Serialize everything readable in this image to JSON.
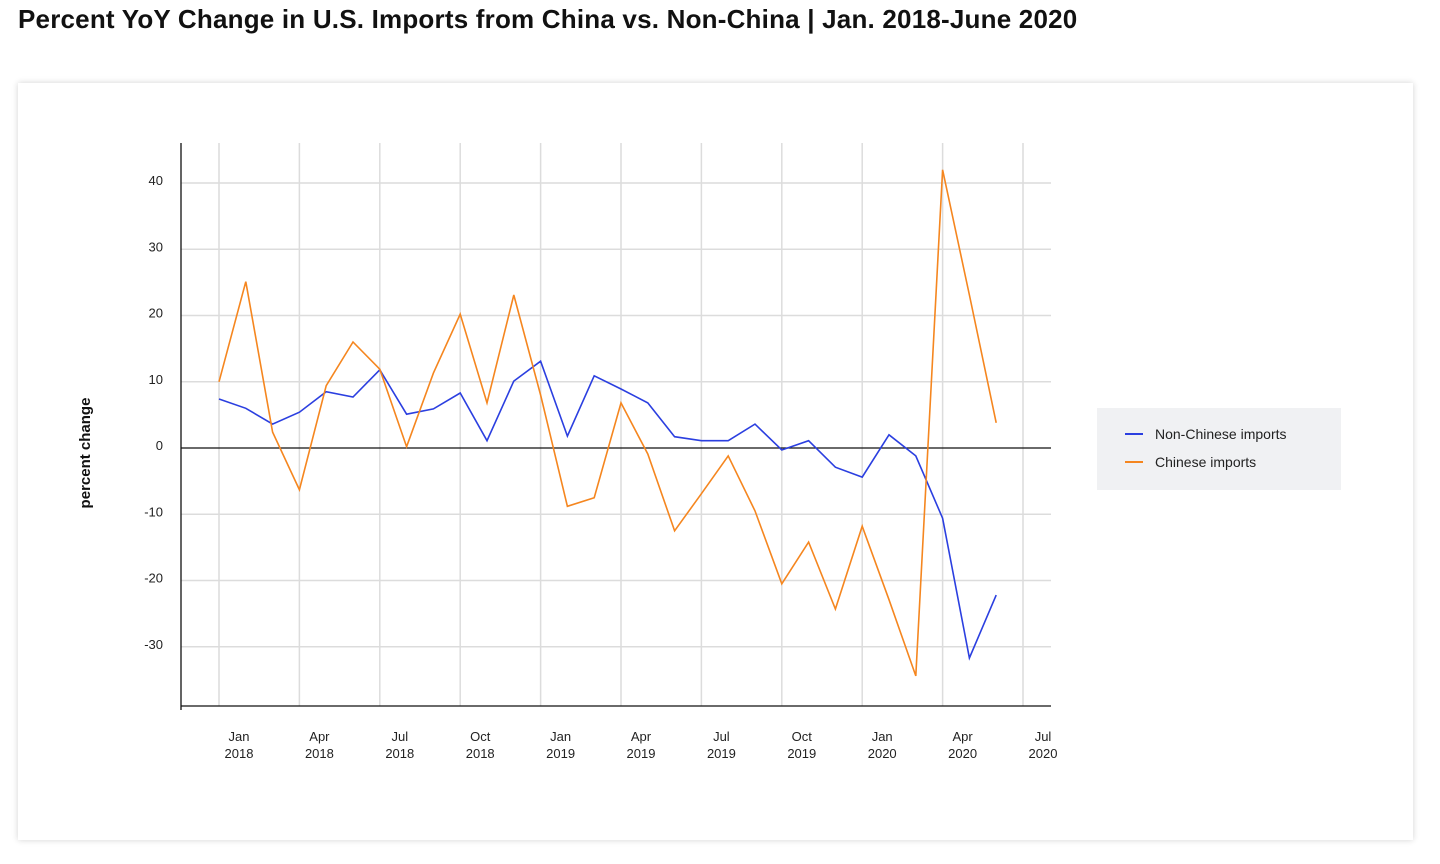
{
  "chart_data": {
    "type": "line",
    "title": "Percent YoY Change in U.S. Imports from China vs. Non-China | Jan. 2018-June 2020",
    "xlabel": "",
    "ylabel": "percent change",
    "ylim": [
      -39,
      46
    ],
    "yticks": [
      40,
      30,
      20,
      10,
      0,
      -10,
      -20,
      -30
    ],
    "xticks": [
      {
        "month": 0,
        "line1": "Jan",
        "line2": "2018"
      },
      {
        "month": 3,
        "line1": "Apr",
        "line2": "2018"
      },
      {
        "month": 6,
        "line1": "Jul",
        "line2": "2018"
      },
      {
        "month": 9,
        "line1": "Oct",
        "line2": "2018"
      },
      {
        "month": 12,
        "line1": "Jan",
        "line2": "2019"
      },
      {
        "month": 15,
        "line1": "Apr",
        "line2": "2019"
      },
      {
        "month": 18,
        "line1": "Jul",
        "line2": "2019"
      },
      {
        "month": 21,
        "line1": "Oct",
        "line2": "2019"
      },
      {
        "month": 24,
        "line1": "Jan",
        "line2": "2020"
      },
      {
        "month": 27,
        "line1": "Apr",
        "line2": "2020"
      },
      {
        "month": 30,
        "line1": "Jul",
        "line2": "2020"
      }
    ],
    "x": [
      "2018-01",
      "2018-02",
      "2018-03",
      "2018-04",
      "2018-05",
      "2018-06",
      "2018-07",
      "2018-08",
      "2018-09",
      "2018-10",
      "2018-11",
      "2018-12",
      "2019-01",
      "2019-02",
      "2019-03",
      "2019-04",
      "2019-05",
      "2019-06",
      "2019-07",
      "2019-08",
      "2019-09",
      "2019-10",
      "2019-11",
      "2019-12",
      "2020-01",
      "2020-02",
      "2020-03",
      "2020-04",
      "2020-05",
      "2020-06"
    ],
    "grid": true,
    "legend_position": "right",
    "series": [
      {
        "name": "Non-Chinese imports",
        "color": "#2b3fe0",
        "values": [
          7.4,
          6.0,
          3.6,
          5.4,
          8.5,
          7.7,
          11.8,
          5.1,
          5.9,
          8.3,
          1.1,
          10.1,
          13.1,
          1.8,
          10.9,
          8.9,
          6.8,
          1.7,
          1.1,
          1.1,
          3.6,
          -0.3,
          1.1,
          -2.9,
          -4.4,
          2.0,
          -1.2,
          -10.6,
          -31.7,
          -22.2
        ]
      },
      {
        "name": "Chinese imports",
        "color": "#f5861f",
        "values": [
          10.0,
          25.1,
          2.4,
          -6.3,
          9.4,
          16.0,
          11.9,
          0.2,
          11.3,
          20.2,
          6.8,
          23.1,
          8.0,
          -8.8,
          -7.5,
          6.8,
          -0.9,
          -12.5,
          -6.9,
          -1.2,
          -9.5,
          -20.5,
          -14.2,
          -24.3,
          -11.8,
          -22.9,
          -34.4,
          42.0,
          23.1,
          3.8
        ]
      }
    ]
  }
}
